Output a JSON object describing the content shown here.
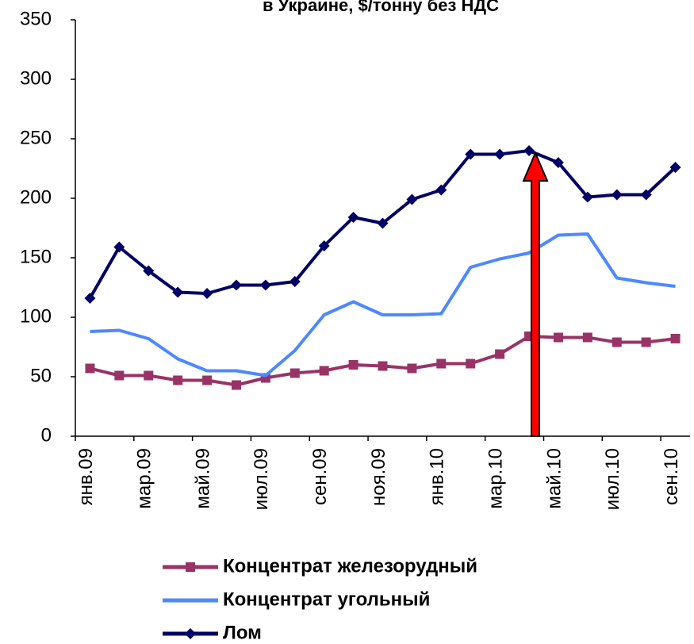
{
  "chart_data": {
    "type": "line",
    "title": "в Украине, $/тонну без НДС",
    "categories": [
      "янв.09",
      null,
      "мар.09",
      null,
      "май.09",
      null,
      "июл.09",
      null,
      "сен.09",
      null,
      "ноя.09",
      null,
      "янв.10",
      null,
      "мар.10",
      null,
      "май.10",
      null,
      "июл.10",
      null,
      "сен.10"
    ],
    "series": [
      {
        "name": "Концентрат железорудный",
        "color": "#993366",
        "marker": "square",
        "values": [
          57,
          51,
          51,
          47,
          47,
          43,
          49,
          53,
          55,
          60,
          59,
          57,
          61,
          61,
          69,
          84,
          83,
          83,
          79,
          79,
          82
        ]
      },
      {
        "name": "Концентрат угольный",
        "color": "#4d88ff",
        "marker": "none",
        "values": [
          88,
          89,
          82,
          65,
          55,
          55,
          51,
          72,
          102,
          113,
          102,
          102,
          103,
          142,
          149,
          154,
          169,
          170,
          133,
          129,
          126
        ]
      },
      {
        "name": "Лом",
        "color": "#000066",
        "marker": "diamond",
        "values": [
          116,
          159,
          139,
          121,
          120,
          127,
          127,
          130,
          160,
          184,
          179,
          199,
          207,
          237,
          237,
          240,
          230,
          201,
          203,
          203,
          226
        ]
      }
    ],
    "ylim": [
      0,
      350
    ],
    "yticks": [
      0,
      50,
      100,
      150,
      200,
      250,
      300,
      350
    ],
    "grid": false
  }
}
